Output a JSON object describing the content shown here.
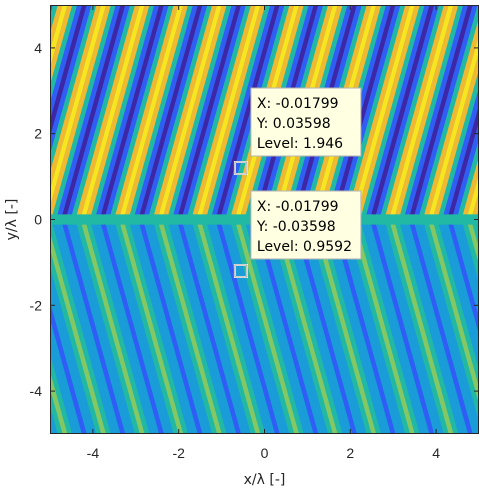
{
  "chart_data": {
    "type": "heatmap",
    "xlabel": "x/λ [-]",
    "ylabel": "y/λ [-]",
    "xlim": [
      -5,
      5
    ],
    "ylim": [
      -5,
      5
    ],
    "xticks": [
      -4,
      -2,
      0,
      2,
      4
    ],
    "yticks": [
      -4,
      -2,
      0,
      2,
      4
    ],
    "xticklabels": [
      "-4",
      "-2",
      "0",
      "2",
      "4"
    ],
    "yticklabels": [
      "-4",
      "-2",
      "0",
      "2",
      "4"
    ],
    "grid": false,
    "colormap": [
      "#3e26a8",
      "#2f5df5",
      "#1a9cd8",
      "#21b9a3",
      "#83c863",
      "#f1b931",
      "#f9e51f"
    ],
    "regions": [
      {
        "name": "upper",
        "y_range": [
          0,
          5
        ],
        "level_range": [
          0,
          2
        ],
        "stripe_period": 0.9,
        "stripe_slope": 3.6
      },
      {
        "name": "lower",
        "y_range": [
          -5,
          0
        ],
        "level_range": [
          0.4,
          1.2
        ],
        "stripe_period": 0.9,
        "stripe_slope": -3.6
      }
    ],
    "datatips": [
      {
        "x": -0.01799,
        "y": 0.03598,
        "anchor": [
          -0.55,
          1.2
        ],
        "lines": [
          "X: -0.01799",
          "Y: 0.03598",
          "Level: 1.946"
        ]
      },
      {
        "x": -0.01799,
        "y": -0.03598,
        "anchor": [
          -0.55,
          -1.2
        ],
        "lines": [
          "X: -0.01799",
          "Y: -0.03598",
          "Level: 0.9592"
        ]
      }
    ]
  }
}
